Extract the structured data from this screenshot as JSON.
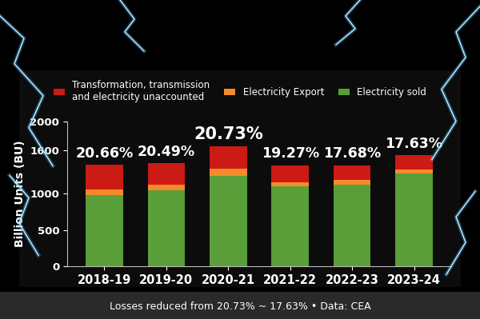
{
  "chart_data": {
    "type": "bar",
    "stacked": true,
    "y_label": "Billion Units (BU)",
    "categories": [
      "2018-19",
      "2019-20",
      "2020-21",
      "2021-22",
      "2022-23",
      "2023-24"
    ],
    "series": [
      {
        "name": "Electricity sold",
        "color": "#5a9e3a",
        "values": [
          980,
          1050,
          1250,
          1100,
          1130,
          1280
        ]
      },
      {
        "name": "Electricity Export",
        "color": "#f58a2a",
        "values": [
          80,
          75,
          100,
          60,
          60,
          60
        ]
      },
      {
        "name": "Transformation, transmission\nand electricity unaccounted",
        "color": "#cc1a14",
        "values": [
          340,
          295,
          300,
          230,
          200,
          190
        ]
      }
    ],
    "annotations": [
      "20.66%",
      "20.49%",
      "20.73%",
      "19.27%",
      "17.68%",
      "17.63%"
    ],
    "caption": "Losses reduced from 20.73% ~ 17.63% • Data: CEA",
    "ylim": [
      0,
      2000
    ],
    "yticks": [
      0,
      500,
      1000,
      1600,
      2000
    ],
    "grid": false,
    "legend": "upper center"
  }
}
